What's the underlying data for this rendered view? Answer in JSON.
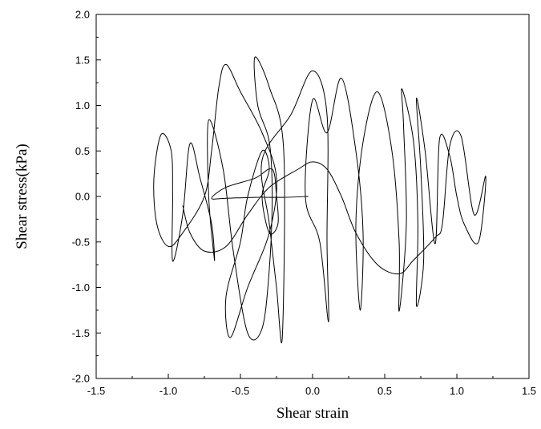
{
  "chart_data": {
    "type": "line",
    "title": "",
    "xlabel": "Shear strain",
    "ylabel": "Shear stress(kPa)",
    "xlim": [
      -1.5,
      1.5
    ],
    "ylim": [
      -2.0,
      2.0
    ],
    "xticks": [
      "-1.5",
      "-1.0",
      "-0.5",
      "0.0",
      "0.5",
      "1.0",
      "1.5"
    ],
    "yticks": [
      "-2.0",
      "-1.5",
      "-1.0",
      "-0.5",
      "0.0",
      "0.5",
      "1.0",
      "1.5",
      "2.0"
    ],
    "grid": false,
    "legend": "none",
    "line_color": "#000000",
    "series": [
      {
        "values": [
          [
            -0.03,
            0.0
          ],
          [
            -0.2,
            -0.01
          ],
          [
            -0.4,
            -0.01
          ],
          [
            -0.6,
            -0.02
          ],
          [
            -0.7,
            -0.02
          ],
          [
            -0.6,
            0.1
          ],
          [
            -0.4,
            0.2
          ],
          [
            -0.28,
            0.3
          ],
          [
            -0.25,
            0.0
          ],
          [
            -0.24,
            -0.3
          ],
          [
            -0.3,
            -0.4
          ],
          [
            -0.35,
            0.0
          ],
          [
            -0.3,
            0.3
          ],
          [
            -0.35,
            0.5
          ],
          [
            -0.45,
            0.0
          ],
          [
            -0.5,
            -0.5
          ],
          [
            -0.6,
            -1.1
          ],
          [
            -0.57,
            -1.55
          ],
          [
            -0.45,
            -1.0
          ],
          [
            -0.3,
            -0.4
          ],
          [
            -0.25,
            0.2
          ],
          [
            -0.35,
            0.7
          ],
          [
            -0.5,
            1.15
          ],
          [
            -0.6,
            1.45
          ],
          [
            -0.65,
            1.2
          ],
          [
            -0.7,
            0.5
          ],
          [
            -0.75,
            0.0
          ],
          [
            -0.9,
            -0.4
          ],
          [
            -1.0,
            -0.55
          ],
          [
            -1.08,
            -0.3
          ],
          [
            -1.1,
            0.2
          ],
          [
            -1.05,
            0.68
          ],
          [
            -0.98,
            0.5
          ],
          [
            -0.97,
            0.0
          ],
          [
            -0.97,
            -0.71
          ],
          [
            -0.9,
            -0.2
          ],
          [
            -0.85,
            0.58
          ],
          [
            -0.78,
            0.2
          ],
          [
            -0.7,
            -0.3
          ],
          [
            -0.68,
            -0.7
          ],
          [
            -0.72,
            0.0
          ],
          [
            -0.72,
            0.84
          ],
          [
            -0.62,
            0.3
          ],
          [
            -0.55,
            -0.6
          ],
          [
            -0.45,
            -1.5
          ],
          [
            -0.35,
            -1.45
          ],
          [
            -0.3,
            -0.8
          ],
          [
            -0.28,
            0.0
          ],
          [
            -0.3,
            0.6
          ],
          [
            -0.38,
            1.0
          ],
          [
            -0.4,
            1.53
          ],
          [
            -0.3,
            1.2
          ],
          [
            -0.2,
            0.5
          ],
          [
            -0.21,
            -1.55
          ],
          [
            -0.25,
            -1.0
          ],
          [
            -0.3,
            -0.3
          ],
          [
            -0.35,
            0.4
          ],
          [
            -0.15,
            0.9
          ],
          [
            0.0,
            1.38
          ],
          [
            0.1,
            0.9
          ],
          [
            0.1,
            -0.5
          ],
          [
            0.11,
            -1.38
          ],
          [
            0.05,
            -0.5
          ],
          [
            -0.05,
            0.0
          ],
          [
            0.0,
            1.06
          ],
          [
            0.1,
            0.7
          ],
          [
            0.2,
            1.3
          ],
          [
            0.3,
            0.5
          ],
          [
            0.35,
            -0.4
          ],
          [
            0.33,
            -1.25
          ],
          [
            0.3,
            -0.3
          ],
          [
            0.35,
            0.6
          ],
          [
            0.45,
            1.15
          ],
          [
            0.55,
            0.5
          ],
          [
            0.6,
            -0.5
          ],
          [
            0.6,
            -1.26
          ],
          [
            0.65,
            -0.3
          ],
          [
            0.63,
            0.8
          ],
          [
            0.62,
            1.18
          ],
          [
            0.7,
            0.6
          ],
          [
            0.73,
            -0.3
          ],
          [
            0.72,
            -1.2
          ],
          [
            0.77,
            -0.7
          ],
          [
            0.75,
            0.3
          ],
          [
            0.72,
            1.08
          ],
          [
            0.78,
            0.5
          ],
          [
            0.85,
            -0.52
          ],
          [
            0.88,
            0.63
          ],
          [
            0.95,
            0.45
          ],
          [
            1.0,
            0.0
          ],
          [
            1.05,
            -0.3
          ],
          [
            1.15,
            -0.5
          ],
          [
            1.2,
            0.22
          ],
          [
            1.12,
            -0.2
          ],
          [
            1.03,
            0.66
          ],
          [
            0.95,
            0.55
          ],
          [
            0.9,
            -0.3
          ],
          [
            0.85,
            -0.45
          ],
          [
            0.7,
            -0.7
          ],
          [
            0.6,
            -0.85
          ],
          [
            0.45,
            -0.75
          ],
          [
            0.3,
            -0.4
          ],
          [
            0.2,
            0.0
          ],
          [
            0.1,
            0.3
          ],
          [
            0.0,
            0.38
          ],
          [
            -0.1,
            0.3
          ],
          [
            -0.3,
            0.1
          ],
          [
            -0.45,
            -0.2
          ],
          [
            -0.6,
            -0.55
          ],
          [
            -0.75,
            -0.6
          ],
          [
            -0.85,
            -0.4
          ],
          [
            -0.9,
            -0.1
          ]
        ]
      }
    ]
  }
}
